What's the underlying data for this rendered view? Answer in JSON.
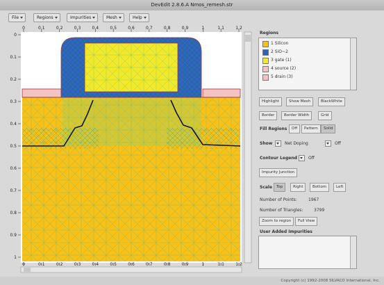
{
  "window_title": "DevEdit 2.8.6.A Nmos_remesh.str",
  "menu": [
    "File",
    "Regions",
    "Impurities",
    "Mesh",
    "Help"
  ],
  "ruler": {
    "top": [
      "0",
      "0.1",
      "0.2",
      "0.3",
      "0.4",
      "0.5",
      "0.6",
      "0.7",
      "0.8",
      "0.9",
      "1",
      "1.1",
      "1.2"
    ],
    "left": [
      "0",
      "0.1",
      "0.2",
      "0.3",
      "0.4",
      "0.5",
      "0.6",
      "0.7",
      "0.8",
      "0.9",
      "1"
    ],
    "bottom": [
      "0",
      "0.1",
      "0.2",
      "0.3",
      "0.4",
      "0.5",
      "0.6",
      "0.7",
      "0.8",
      "0.9",
      "1",
      "1.1",
      "1.2"
    ]
  },
  "regions": {
    "label": "Regions",
    "items": [
      "1 Silicon",
      "2 SiO~2",
      "3 gate (1)",
      "4 source (2)",
      "5 drain (3)"
    ]
  },
  "display_buttons": [
    "Highlight",
    "Show Mesh",
    "BlackWhite",
    "Border",
    "Border Width",
    "Grid"
  ],
  "fill_regions": {
    "label": "Fill Regions",
    "options": [
      "Off",
      "Pattern",
      "Solid"
    ]
  },
  "show": {
    "label": "Show",
    "value": "Net Doping",
    "state": "Off"
  },
  "contour_legend": {
    "label": "Contour Legend",
    "value": "Off"
  },
  "impurity_junction": "Impurity Junction",
  "scale": {
    "label": "Scale",
    "options": [
      "Top",
      "Right",
      "Bottom",
      "Left"
    ]
  },
  "stats": [
    {
      "label": "Number of Points:",
      "value": "1967"
    },
    {
      "label": "Number of Triangles:",
      "value": "3799"
    }
  ],
  "view_buttons": [
    "Zoom to region",
    "Full View"
  ],
  "user_impurities": "User Added Impurities",
  "footer": "Copyright (c) 1992-2008 SILVACO International, Inc."
}
